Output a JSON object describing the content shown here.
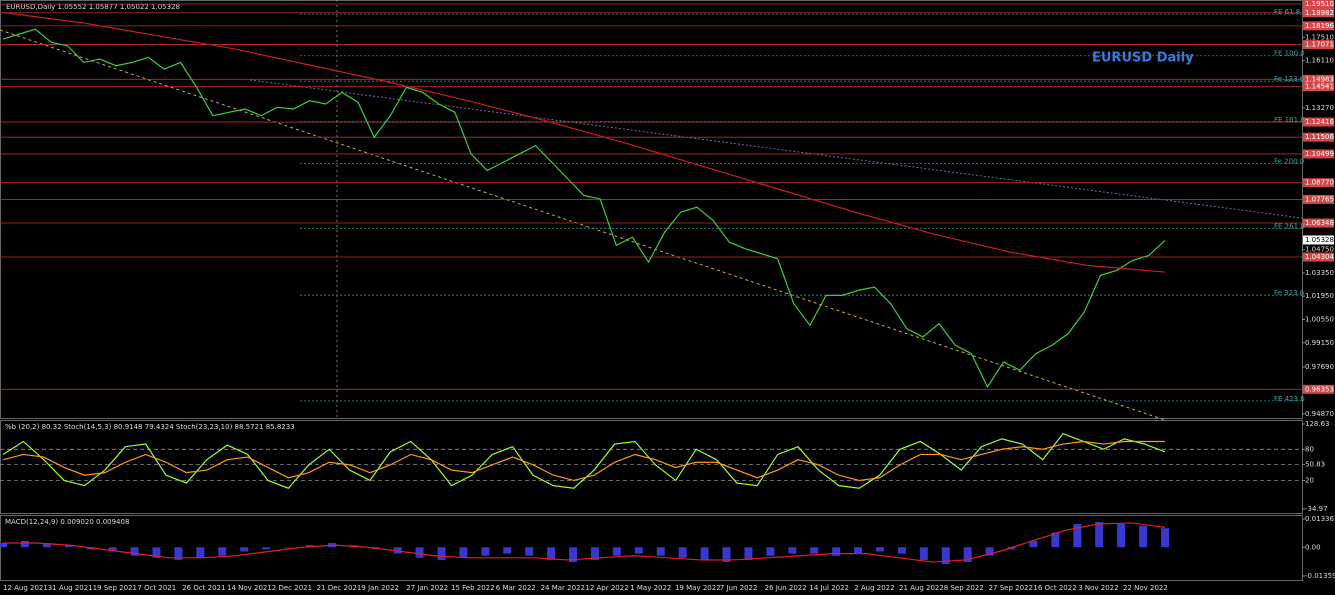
{
  "header": "EURUSD,Daily  1.05552 1.05877 1.05022 1.05328",
  "chart_data": [
    {
      "type": "line",
      "title": "EURUSD Daily",
      "ylim": [
        0.9487,
        1.1951
      ],
      "yticks": [
        {
          "value": 1.1751,
          "label": "1.17510"
        },
        {
          "value": 1.1611,
          "label": "1.16110"
        },
        {
          "value": 1.1327,
          "label": "1.13270"
        },
        {
          "value": 1.0475,
          "label": "1.04750"
        },
        {
          "value": 1.0335,
          "label": "1.03350"
        },
        {
          "value": 1.0195,
          "label": "1.01950"
        },
        {
          "value": 1.0055,
          "label": "1.00550"
        },
        {
          "value": 0.9915,
          "label": "0.99150"
        },
        {
          "value": 0.9769,
          "label": "0.97690"
        },
        {
          "value": 0.9487,
          "label": "0.94870"
        }
      ],
      "level_ticks": [
        {
          "value": 1.1951,
          "label": "1.19510"
        },
        {
          "value": 1.18982,
          "label": "1.18982"
        },
        {
          "value": 1.18196,
          "label": "1.18196"
        },
        {
          "value": 1.17071,
          "label": "1.17071"
        },
        {
          "value": 1.14983,
          "label": "1.14983"
        },
        {
          "value": 1.14541,
          "label": "1.14541"
        },
        {
          "value": 1.12416,
          "label": "1.12416"
        },
        {
          "value": 1.11506,
          "label": "1.11506"
        },
        {
          "value": 1.10499,
          "label": "1.10499"
        },
        {
          "value": 1.0877,
          "label": "1.08770"
        },
        {
          "value": 1.07765,
          "label": "1.07765"
        },
        {
          "value": 1.06348,
          "label": "1.06348"
        },
        {
          "value": 1.04304,
          "label": "1.04304"
        },
        {
          "value": 0.96353,
          "label": "0.96353"
        }
      ],
      "current": {
        "value": 1.05328,
        "label": "1.05328"
      },
      "fib": [
        {
          "label": "FE 61.8",
          "value": 1.189
        },
        {
          "label": "FE 100.0",
          "value": 1.164
        },
        {
          "label": "Fe 123.6",
          "value": 1.1487
        },
        {
          "label": "FE 161.8",
          "value": 1.1243
        },
        {
          "label": "Fe 200.0",
          "value": 1.0993
        },
        {
          "label": "FE 261.8",
          "value": 1.0603
        },
        {
          "label": "Fe 323.6",
          "value": 1.0201
        },
        {
          "label": "FE 423.6",
          "value": 0.9566
        }
      ],
      "series": [
        {
          "color": "#3ccf3c",
          "values": [
            1.174,
            1.177,
            1.18,
            1.172,
            1.17,
            1.16,
            1.162,
            1.158,
            1.16,
            1.163,
            1.156,
            1.16,
            1.145,
            1.128,
            1.13,
            1.132,
            1.128,
            1.133,
            1.132,
            1.137,
            1.135,
            1.142,
            1.136,
            1.115,
            1.128,
            1.145,
            1.142,
            1.135,
            1.13,
            1.105,
            1.095,
            1.1,
            1.105,
            1.11,
            1.1,
            1.09,
            1.08,
            1.078,
            1.05,
            1.055,
            1.04,
            1.058,
            1.07,
            1.073,
            1.065,
            1.052,
            1.048,
            1.045,
            1.042,
            1.015,
            1.002,
            1.02,
            1.02,
            1.023,
            1.025,
            1.015,
            1.0,
            0.995,
            1.003,
            0.99,
            0.985,
            0.965,
            0.98,
            0.975,
            0.985,
            0.99,
            0.997,
            1.01,
            1.032,
            1.035,
            1.041,
            1.044,
            1.053
          ]
        },
        {
          "color": "#c81e1e",
          "values": [
            1.19,
            1.184,
            1.176,
            1.168,
            1.158,
            1.148,
            1.137,
            1.125,
            1.112,
            1.098,
            1.084,
            1.07,
            1.057,
            1.046,
            1.038,
            1.034
          ]
        }
      ]
    },
    {
      "type": "line",
      "title": "%b (20,2) 80.32  Stoch(14,5,3) 80.9148 79.4324  Stoch(23,23,10) 88.5721 85.8233",
      "ylim": [
        -34.97,
        128.63
      ],
      "yticks": [
        128.63,
        80,
        50.83,
        20,
        -34.97
      ],
      "series": [
        {
          "color": "#9cff2e",
          "values": [
            70,
            95,
            60,
            20,
            10,
            40,
            85,
            90,
            30,
            15,
            60,
            88,
            70,
            20,
            5,
            50,
            80,
            40,
            20,
            75,
            95,
            60,
            10,
            30,
            70,
            85,
            30,
            10,
            5,
            40,
            90,
            95,
            50,
            20,
            80,
            60,
            15,
            10,
            70,
            85,
            40,
            10,
            5,
            30,
            80,
            95,
            70,
            40,
            85,
            100,
            90,
            60,
            110,
            95,
            80,
            100,
            90,
            75
          ]
        },
        {
          "color": "#ff9a1a",
          "values": [
            60,
            70,
            65,
            45,
            30,
            35,
            55,
            70,
            55,
            35,
            40,
            60,
            65,
            45,
            25,
            35,
            55,
            50,
            35,
            50,
            70,
            60,
            40,
            35,
            50,
            65,
            50,
            30,
            20,
            30,
            55,
            70,
            60,
            45,
            55,
            55,
            40,
            25,
            40,
            60,
            50,
            30,
            20,
            25,
            50,
            70,
            70,
            60,
            70,
            80,
            85,
            80,
            90,
            95,
            90,
            95,
            95,
            95
          ]
        }
      ]
    },
    {
      "type": "macd",
      "title": "MACD(12,24,9) 0.009020 0.009408",
      "ylim": [
        -0.013591,
        0.013362
      ],
      "yticks": [
        0.013362,
        {
          "value": 0,
          "label": "0.00"
        },
        -0.013591
      ],
      "histogram": {
        "color": "#3838d0",
        "values": [
          0.002,
          0.003,
          0.002,
          0.001,
          -0.001,
          -0.002,
          -0.004,
          -0.005,
          -0.006,
          -0.005,
          -0.004,
          -0.002,
          -0.001,
          0.0,
          0.001,
          0.002,
          0.001,
          -0.001,
          -0.003,
          -0.005,
          -0.006,
          -0.005,
          -0.004,
          -0.003,
          -0.004,
          -0.006,
          -0.007,
          -0.006,
          -0.004,
          -0.003,
          -0.004,
          -0.005,
          -0.006,
          -0.007,
          -0.006,
          -0.004,
          -0.003,
          -0.003,
          -0.004,
          -0.003,
          -0.002,
          -0.003,
          -0.006,
          -0.008,
          -0.007,
          -0.004,
          -0.001,
          0.003,
          0.007,
          0.011,
          0.012,
          0.011,
          0.01,
          0.009
        ]
      },
      "signal": {
        "color": "#e02020",
        "values": [
          0.002,
          0.002,
          0.001,
          -0.001,
          -0.003,
          -0.005,
          -0.005,
          -0.004,
          -0.002,
          0.0,
          0.001,
          0.0,
          -0.002,
          -0.004,
          -0.005,
          -0.005,
          -0.005,
          -0.006,
          -0.005,
          -0.004,
          -0.005,
          -0.006,
          -0.006,
          -0.005,
          -0.004,
          -0.003,
          -0.003,
          -0.005,
          -0.007,
          -0.006,
          -0.002,
          0.003,
          0.008,
          0.011,
          0.0115,
          0.0094
        ]
      },
      "xtick_labels": [
        "12 Aug 2021",
        "31 Aug 2021",
        "19 Sep 2021",
        "7 Oct 2021",
        "26 Oct 2021",
        "14 Nov 2021",
        "2 Dec 2021",
        "21 Dec 2021",
        "9 Jan 2022",
        "27 Jan 2022",
        "15 Feb 2022",
        "6 Mar 2022",
        "24 Mar 2022",
        "12 Apr 2022",
        "1 May 2022",
        "19 May 2022",
        "7 Jun 2022",
        "26 Jun 2022",
        "14 Jul 2022",
        "2 Aug 2022",
        "21 Aug 2022",
        "8 Sep 2022",
        "27 Sep 2022",
        "16 Oct 2022",
        "3 Nov 2022",
        "22 Nov 2022"
      ]
    }
  ]
}
